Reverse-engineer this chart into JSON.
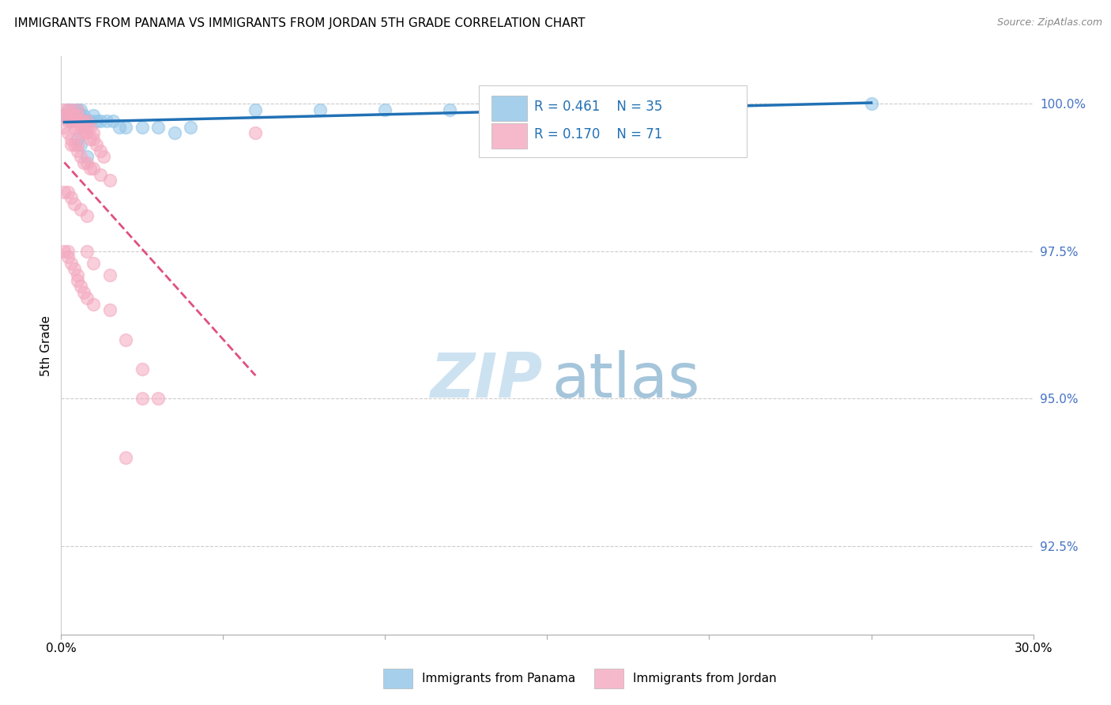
{
  "title": "IMMIGRANTS FROM PANAMA VS IMMIGRANTS FROM JORDAN 5TH GRADE CORRELATION CHART",
  "source": "Source: ZipAtlas.com",
  "ylabel": "5th Grade",
  "ytick_labels": [
    "100.0%",
    "97.5%",
    "95.0%",
    "92.5%"
  ],
  "ytick_values": [
    1.0,
    0.975,
    0.95,
    0.925
  ],
  "xlim": [
    0.0,
    0.3
  ],
  "ylim": [
    0.91,
    1.008
  ],
  "legend_panama": "Immigrants from Panama",
  "legend_jordan": "Immigrants from Jordan",
  "R_panama": 0.461,
  "N_panama": 35,
  "R_jordan": 0.17,
  "N_jordan": 71,
  "color_panama": "#90c4e8",
  "color_jordan": "#f4a8bf",
  "color_trendline_panama": "#2171b5",
  "color_trendline_jordan": "#e05080",
  "panama_x": [
    0.001,
    0.002,
    0.002,
    0.003,
    0.003,
    0.004,
    0.004,
    0.005,
    0.005,
    0.006,
    0.006,
    0.007,
    0.007,
    0.008,
    0.009,
    0.01,
    0.011,
    0.012,
    0.014,
    0.016,
    0.018,
    0.02,
    0.025,
    0.03,
    0.04,
    0.06,
    0.08,
    0.1,
    0.005,
    0.006,
    0.008,
    0.18,
    0.25,
    0.035,
    0.12
  ],
  "panama_y": [
    0.998,
    0.999,
    0.998,
    0.998,
    0.997,
    0.999,
    0.998,
    0.999,
    0.998,
    0.999,
    0.998,
    0.998,
    0.997,
    0.997,
    0.997,
    0.998,
    0.997,
    0.997,
    0.997,
    0.997,
    0.996,
    0.996,
    0.996,
    0.996,
    0.996,
    0.999,
    0.999,
    0.999,
    0.994,
    0.993,
    0.991,
    0.999,
    1.0,
    0.995,
    0.999
  ],
  "jordan_x": [
    0.001,
    0.001,
    0.002,
    0.002,
    0.002,
    0.003,
    0.003,
    0.003,
    0.004,
    0.004,
    0.004,
    0.005,
    0.005,
    0.005,
    0.006,
    0.006,
    0.006,
    0.007,
    0.007,
    0.007,
    0.008,
    0.008,
    0.008,
    0.009,
    0.009,
    0.01,
    0.01,
    0.011,
    0.012,
    0.013,
    0.001,
    0.002,
    0.003,
    0.003,
    0.004,
    0.005,
    0.005,
    0.006,
    0.007,
    0.008,
    0.009,
    0.01,
    0.012,
    0.015,
    0.001,
    0.002,
    0.003,
    0.004,
    0.006,
    0.008,
    0.001,
    0.002,
    0.002,
    0.003,
    0.004,
    0.005,
    0.005,
    0.006,
    0.007,
    0.008,
    0.01,
    0.015,
    0.02,
    0.025,
    0.03,
    0.06,
    0.02,
    0.008,
    0.01,
    0.015,
    0.025
  ],
  "jordan_y": [
    0.999,
    0.998,
    0.999,
    0.998,
    0.997,
    0.999,
    0.998,
    0.997,
    0.998,
    0.997,
    0.996,
    0.999,
    0.998,
    0.997,
    0.997,
    0.996,
    0.995,
    0.997,
    0.996,
    0.995,
    0.997,
    0.996,
    0.995,
    0.996,
    0.994,
    0.995,
    0.994,
    0.993,
    0.992,
    0.991,
    0.996,
    0.995,
    0.994,
    0.993,
    0.993,
    0.993,
    0.992,
    0.991,
    0.99,
    0.99,
    0.989,
    0.989,
    0.988,
    0.987,
    0.985,
    0.985,
    0.984,
    0.983,
    0.982,
    0.981,
    0.975,
    0.975,
    0.974,
    0.973,
    0.972,
    0.971,
    0.97,
    0.969,
    0.968,
    0.967,
    0.966,
    0.965,
    0.96,
    0.955,
    0.95,
    0.995,
    0.94,
    0.975,
    0.973,
    0.971,
    0.95
  ]
}
